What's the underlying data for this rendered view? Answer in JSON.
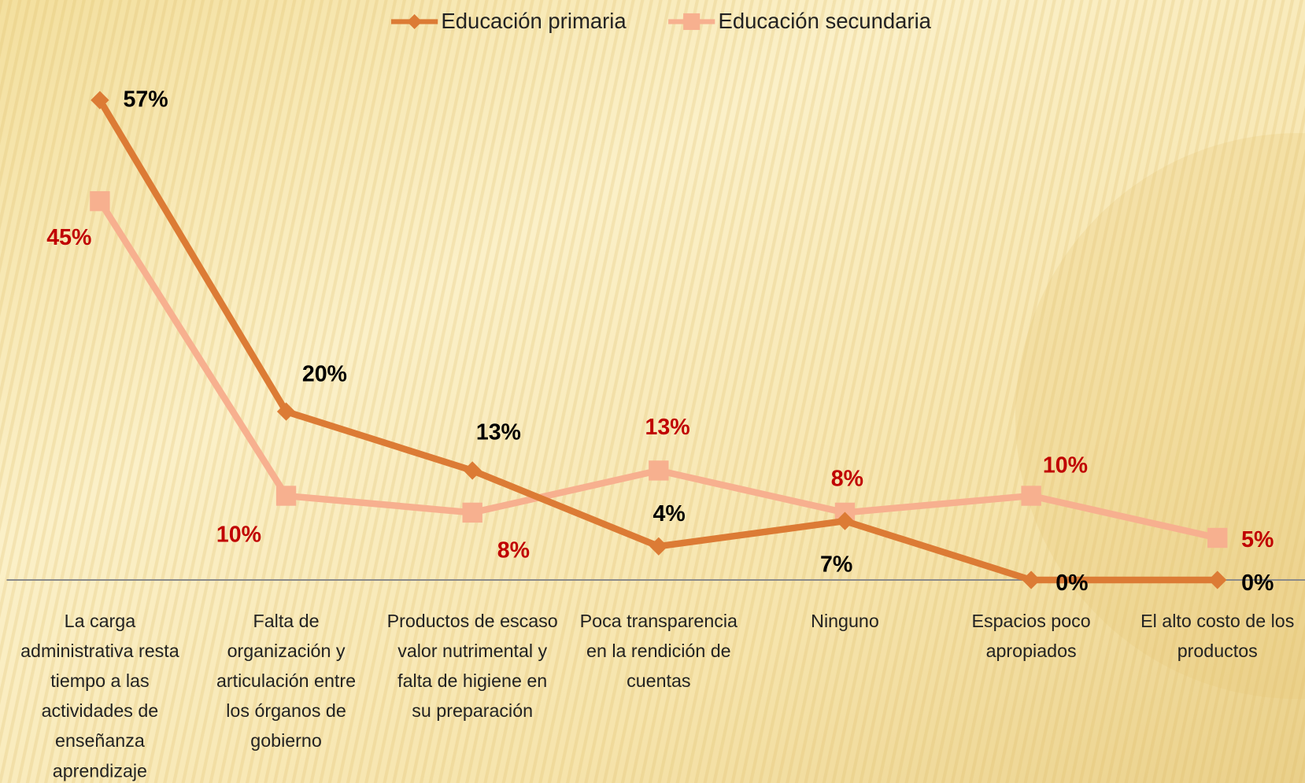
{
  "chart_data": {
    "type": "line",
    "categories": [
      "La carga\nadministrativa resta\ntiempo a las\nactividades de\nenseñanza\naprendizaje",
      "Falta de\norganización y\narticulación entre\nlos órganos de\ngobierno",
      "Productos de escaso\nvalor nutrimental y\nfalta de higiene en\nsu preparación",
      "Poca transparencia\nen la rendición de\ncuentas",
      "Ninguno",
      "Espacios poco\napropiados",
      "El alto costo de los\nproductos"
    ],
    "series": [
      {
        "name": "Educación primaria",
        "color": "#dc7b35",
        "marker": "diamond",
        "label_color": "#000000",
        "values": [
          57,
          20,
          13,
          4,
          7,
          0,
          0
        ],
        "value_labels": [
          "57%",
          "20%",
          "13%",
          "4%",
          "7%",
          "0%",
          "0%"
        ]
      },
      {
        "name": "Educación secundaria",
        "color": "#f7b08f",
        "marker": "square",
        "label_color": "#c00000",
        "values": [
          45,
          10,
          8,
          13,
          8,
          10,
          5
        ],
        "value_labels": [
          "45%",
          "10%",
          "8%",
          "13%",
          "8%",
          "10%",
          "5%"
        ]
      }
    ],
    "ylim": [
      0,
      60
    ],
    "grid": false,
    "legend": "top"
  }
}
